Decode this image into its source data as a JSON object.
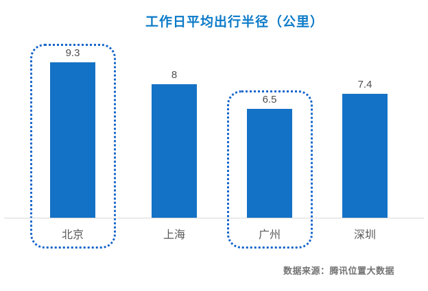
{
  "title": "工作日平均出行半径（公里）",
  "source_note": "数据来源：腾讯位置大数据",
  "colors": {
    "bar": "#1472C6",
    "highlight_border": "#1465CB",
    "title": "#0B7AC8",
    "axis_line": "#D9D9D9",
    "value_label": "#4D4D4D",
    "category_label": "#595959",
    "source_text": "#737373",
    "background": "#FFFFFF"
  },
  "chart_data": {
    "type": "bar",
    "title": "工作日平均出行半径（公里）",
    "categories": [
      "北京",
      "上海",
      "广州",
      "深圳"
    ],
    "values": [
      9.3,
      8,
      6.5,
      7.4
    ],
    "value_labels": [
      "9.3",
      "8",
      "6.5",
      "7.4"
    ],
    "highlighted": [
      "北京",
      "广州"
    ],
    "xlabel": "",
    "ylabel": "",
    "ylim": [
      0,
      10
    ],
    "grid": false,
    "legend": "none",
    "source": "数据来源：腾讯位置大数据"
  }
}
